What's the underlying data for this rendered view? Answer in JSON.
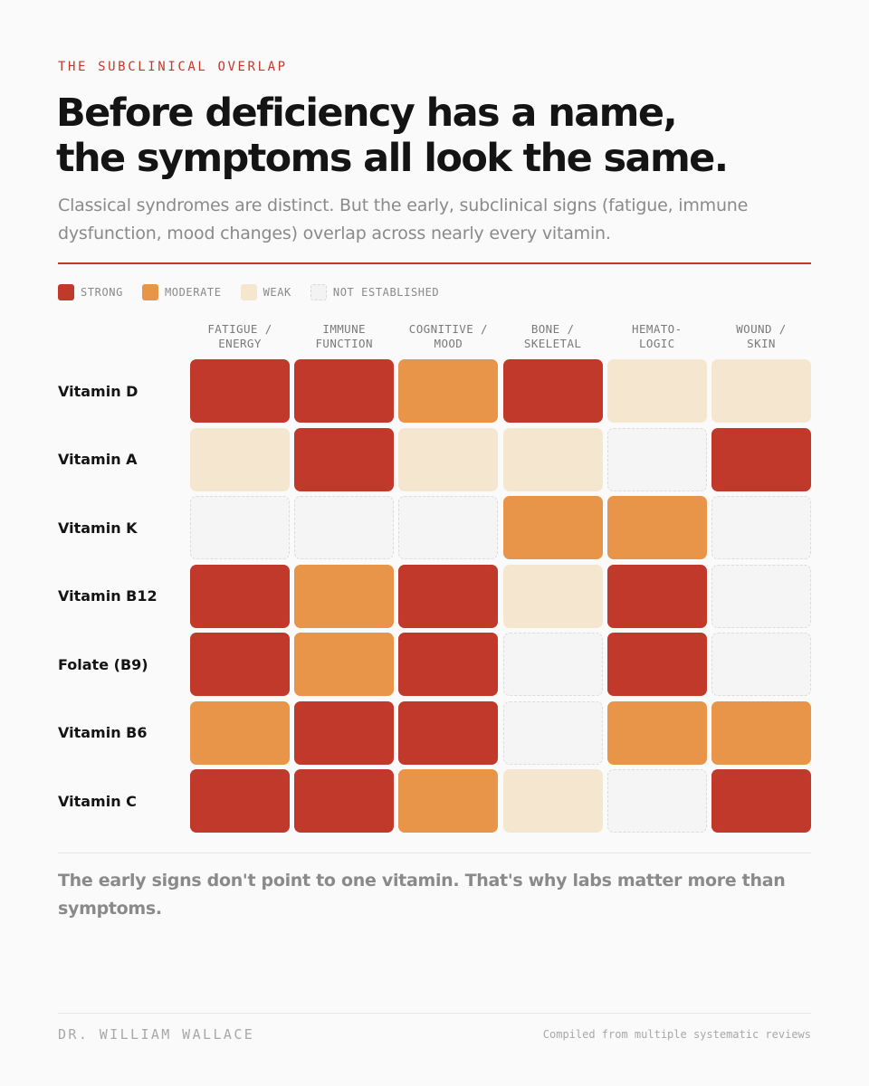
{
  "eyebrow": "THE SUBCLINICAL OVERLAP",
  "headline": {
    "line1": "Before deficiency has a name,",
    "line2": "the symptoms all look the same."
  },
  "subtitle": "Classical syndromes are distinct. But the early, subclinical signs (fatigue, immune dysfunction, mood changes) overlap across nearly every vitamin.",
  "legend": [
    {
      "key": "strong",
      "label": "STRONG"
    },
    {
      "key": "moderate",
      "label": "MODERATE"
    },
    {
      "key": "weak",
      "label": "WEAK"
    },
    {
      "key": "none",
      "label": "NOT ESTABLISHED"
    }
  ],
  "colors": {
    "strong": "#c0392b",
    "moderate": "#e8954a",
    "weak": "#f5e6d0",
    "none": "#f5f5f5",
    "accent": "#c0392b"
  },
  "chart_data": {
    "type": "heatmap",
    "title": "Before deficiency has a name, the symptoms all look the same.",
    "columns": [
      {
        "line1": "FATIGUE /",
        "line2": "ENERGY"
      },
      {
        "line1": "IMMUNE",
        "line2": "FUNCTION"
      },
      {
        "line1": "COGNITIVE /",
        "line2": "MOOD"
      },
      {
        "line1": "BONE /",
        "line2": "SKELETAL"
      },
      {
        "line1": "HEMATO-",
        "line2": "LOGIC"
      },
      {
        "line1": "WOUND /",
        "line2": "SKIN"
      }
    ],
    "rows": [
      {
        "name": "Vitamin D",
        "values": [
          "strong",
          "strong",
          "moderate",
          "strong",
          "weak",
          "weak"
        ]
      },
      {
        "name": "Vitamin A",
        "values": [
          "weak",
          "strong",
          "weak",
          "weak",
          "none",
          "strong"
        ]
      },
      {
        "name": "Vitamin K",
        "values": [
          "none",
          "none",
          "none",
          "moderate",
          "moderate",
          "none"
        ]
      },
      {
        "name": "Vitamin B12",
        "values": [
          "strong",
          "moderate",
          "strong",
          "weak",
          "strong",
          "none"
        ]
      },
      {
        "name": "Folate (B9)",
        "values": [
          "strong",
          "moderate",
          "strong",
          "none",
          "strong",
          "none"
        ]
      },
      {
        "name": "Vitamin B6",
        "values": [
          "moderate",
          "strong",
          "strong",
          "none",
          "moderate",
          "moderate"
        ]
      },
      {
        "name": "Vitamin C",
        "values": [
          "strong",
          "strong",
          "moderate",
          "weak",
          "none",
          "strong"
        ]
      }
    ],
    "scale": [
      "strong",
      "moderate",
      "weak",
      "none"
    ]
  },
  "takeaway": "The early signs don't point to one vitamin. That's why labs matter more than symptoms.",
  "footer": {
    "author": "DR. WILLIAM WALLACE",
    "source": "Compiled from multiple systematic reviews"
  }
}
